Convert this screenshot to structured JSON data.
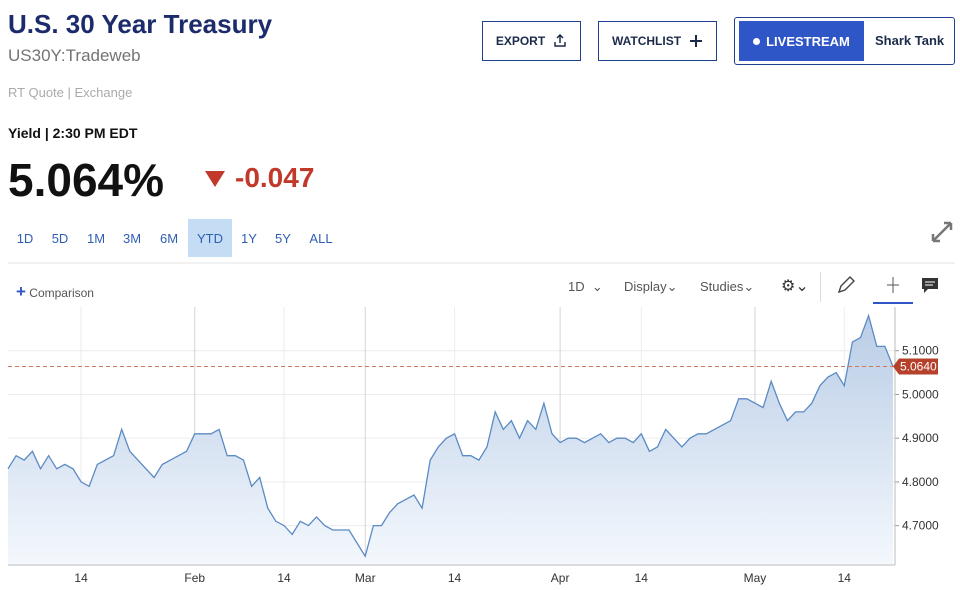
{
  "header": {
    "title": "U.S. 30 Year Treasury",
    "symbol": "US30Y:Tradeweb",
    "source": "RT Quote | Exchange"
  },
  "buttons": [
    "EXPORT",
    "WATCHLIST",
    "LIVESTREAM",
    "Shark Tank"
  ],
  "quote": {
    "label": "Yield | 2:30 PM EDT",
    "price": "5.064%",
    "change": "-0.047"
  },
  "range_tabs": [
    "1D",
    "5D",
    "1M",
    "3M",
    "6M",
    "YTD",
    "1Y",
    "5Y",
    "ALL"
  ],
  "active_tab": "YTD",
  "toolbar": {
    "comparison": "Comparison",
    "interval": "1D",
    "display": "Display",
    "studies": "Studies"
  },
  "chart_data": {
    "type": "line",
    "color": "#5b8ac4",
    "categories": [
      null,
      null,
      null,
      null,
      null,
      null,
      null,
      null,
      null,
      "14",
      null,
      null,
      null,
      null,
      null,
      null,
      null,
      null,
      null,
      null,
      null,
      null,
      null,
      "Feb",
      null,
      null,
      null,
      null,
      null,
      null,
      null,
      null,
      null,
      null,
      "14",
      null,
      null,
      null,
      null,
      null,
      null,
      null,
      null,
      null,
      "Mar",
      null,
      null,
      null,
      null,
      null,
      null,
      null,
      null,
      null,
      null,
      "14",
      null,
      null,
      null,
      null,
      null,
      null,
      null,
      null,
      null,
      null,
      null,
      null,
      "Apr",
      null,
      null,
      null,
      null,
      null,
      null,
      null,
      null,
      null,
      "14",
      null,
      null,
      null,
      null,
      null,
      null,
      null,
      null,
      null,
      null,
      null,
      null,
      null,
      "May",
      null,
      null,
      null,
      null,
      null,
      null,
      null,
      null,
      null,
      null,
      "14",
      null,
      null,
      null,
      null,
      null,
      null
    ],
    "values": [
      4.83,
      4.86,
      4.85,
      4.87,
      4.83,
      4.86,
      4.83,
      4.84,
      4.83,
      4.8,
      4.79,
      4.84,
      4.85,
      4.86,
      4.92,
      4.87,
      4.85,
      4.83,
      4.81,
      4.84,
      4.85,
      4.86,
      4.87,
      4.91,
      4.91,
      4.91,
      4.92,
      4.86,
      4.86,
      4.85,
      4.79,
      4.81,
      4.74,
      4.71,
      4.7,
      4.68,
      4.71,
      4.7,
      4.72,
      4.7,
      4.69,
      4.69,
      4.69,
      4.66,
      4.63,
      4.7,
      4.7,
      4.73,
      4.75,
      4.76,
      4.77,
      4.74,
      4.85,
      4.88,
      4.9,
      4.91,
      4.86,
      4.86,
      4.85,
      4.88,
      4.96,
      4.92,
      4.94,
      4.9,
      4.94,
      4.92,
      4.98,
      4.91,
      4.89,
      4.9,
      4.9,
      4.89,
      4.9,
      4.91,
      4.89,
      4.9,
      4.9,
      4.89,
      4.91,
      4.87,
      4.88,
      4.92,
      4.9,
      4.88,
      4.9,
      4.91,
      4.91,
      4.92,
      4.93,
      4.94,
      4.99,
      4.99,
      4.98,
      4.97,
      5.03,
      4.98,
      4.94,
      4.96,
      4.96,
      4.98,
      5.02,
      5.04,
      5.05,
      5.02,
      5.12,
      5.13,
      5.18,
      5.11,
      5.11,
      5.064
    ],
    "ylim": [
      4.61,
      5.2
    ],
    "yticks": [
      {
        "value": 4.7,
        "label": "4.7000"
      },
      {
        "value": 4.8,
        "label": "4.8000"
      },
      {
        "value": 4.9,
        "label": "4.9000"
      },
      {
        "value": 5.0,
        "label": "5.0000"
      },
      {
        "value": 5.1,
        "label": "5.1000"
      }
    ],
    "last_price": {
      "value": 5.064,
      "label": "5.0640"
    },
    "grid": true
  }
}
